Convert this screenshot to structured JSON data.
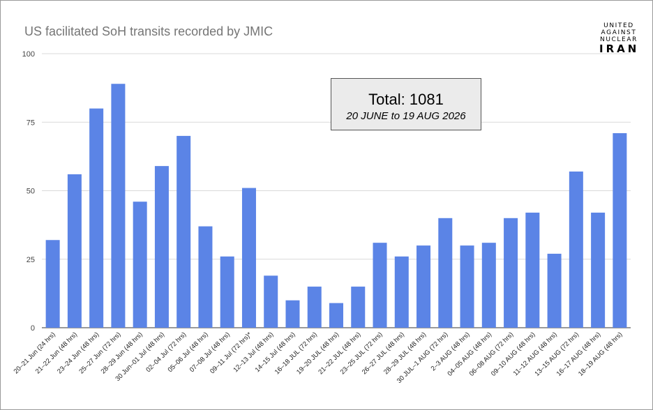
{
  "chart_data": {
    "type": "bar",
    "title": "US facilitated SoH transits recorded by JMIC",
    "categories": [
      "20–21 Jun (24 hrs)",
      "21–22 Jun (48 hrs)",
      "23–24 Jun (48 hrs)",
      "25–27 Jun (72 hrs)",
      "28–29 Jun (48 hrs)",
      "30 Jun–01 Jul (48 hrs)",
      "02–04 Jul (72 hrs)",
      "05–06 Jul (48 hrs)",
      "07–08 Jul (48 hrs)",
      "09–11 Jul (72 hrs)*",
      "12–13 Jul (48 hrs)",
      "14–15 Jul (48 hrs)",
      "16–18 JUL (72 hrs)",
      "19–20 JUL (48 hrs)",
      "21–22 JUL (48 hrs)",
      "23–25 JUL (72 hrs)",
      "26–27 JUL (48 hrs)",
      "28–29 JUL (48 hrs)",
      "30 JUL–1 AUG (72 hrs)",
      "2–3 AUG (48 hrs)",
      "04–05 AUG (48 hrs)",
      "06–08 AUG (72 hrs)",
      "09–10 AUG (48 hrs)",
      "11–12 AUG (48 hrs)",
      "13–15 AUG (72 hrs)",
      "16–17 AUG (48 hrs)",
      "18–19 AUG (48 hrs)"
    ],
    "values": [
      32,
      56,
      80,
      89,
      46,
      59,
      70,
      37,
      26,
      51,
      19,
      10,
      15,
      9,
      15,
      31,
      26,
      30,
      40,
      30,
      31,
      40,
      42,
      27,
      57,
      42,
      71
    ],
    "ylim": [
      0,
      100
    ],
    "yticks": [
      "0",
      "25",
      "50",
      "75",
      "100"
    ],
    "grid": true,
    "bar_color": "#5b84e6",
    "annotation": {
      "total_label": "Total: 1081",
      "date_range": "20 JUNE to 19 AUG 2026"
    }
  },
  "logo": {
    "line1": "UNITED",
    "line2": "AGAINST",
    "line3": "NUCLEAR",
    "line4": "IRAN"
  }
}
